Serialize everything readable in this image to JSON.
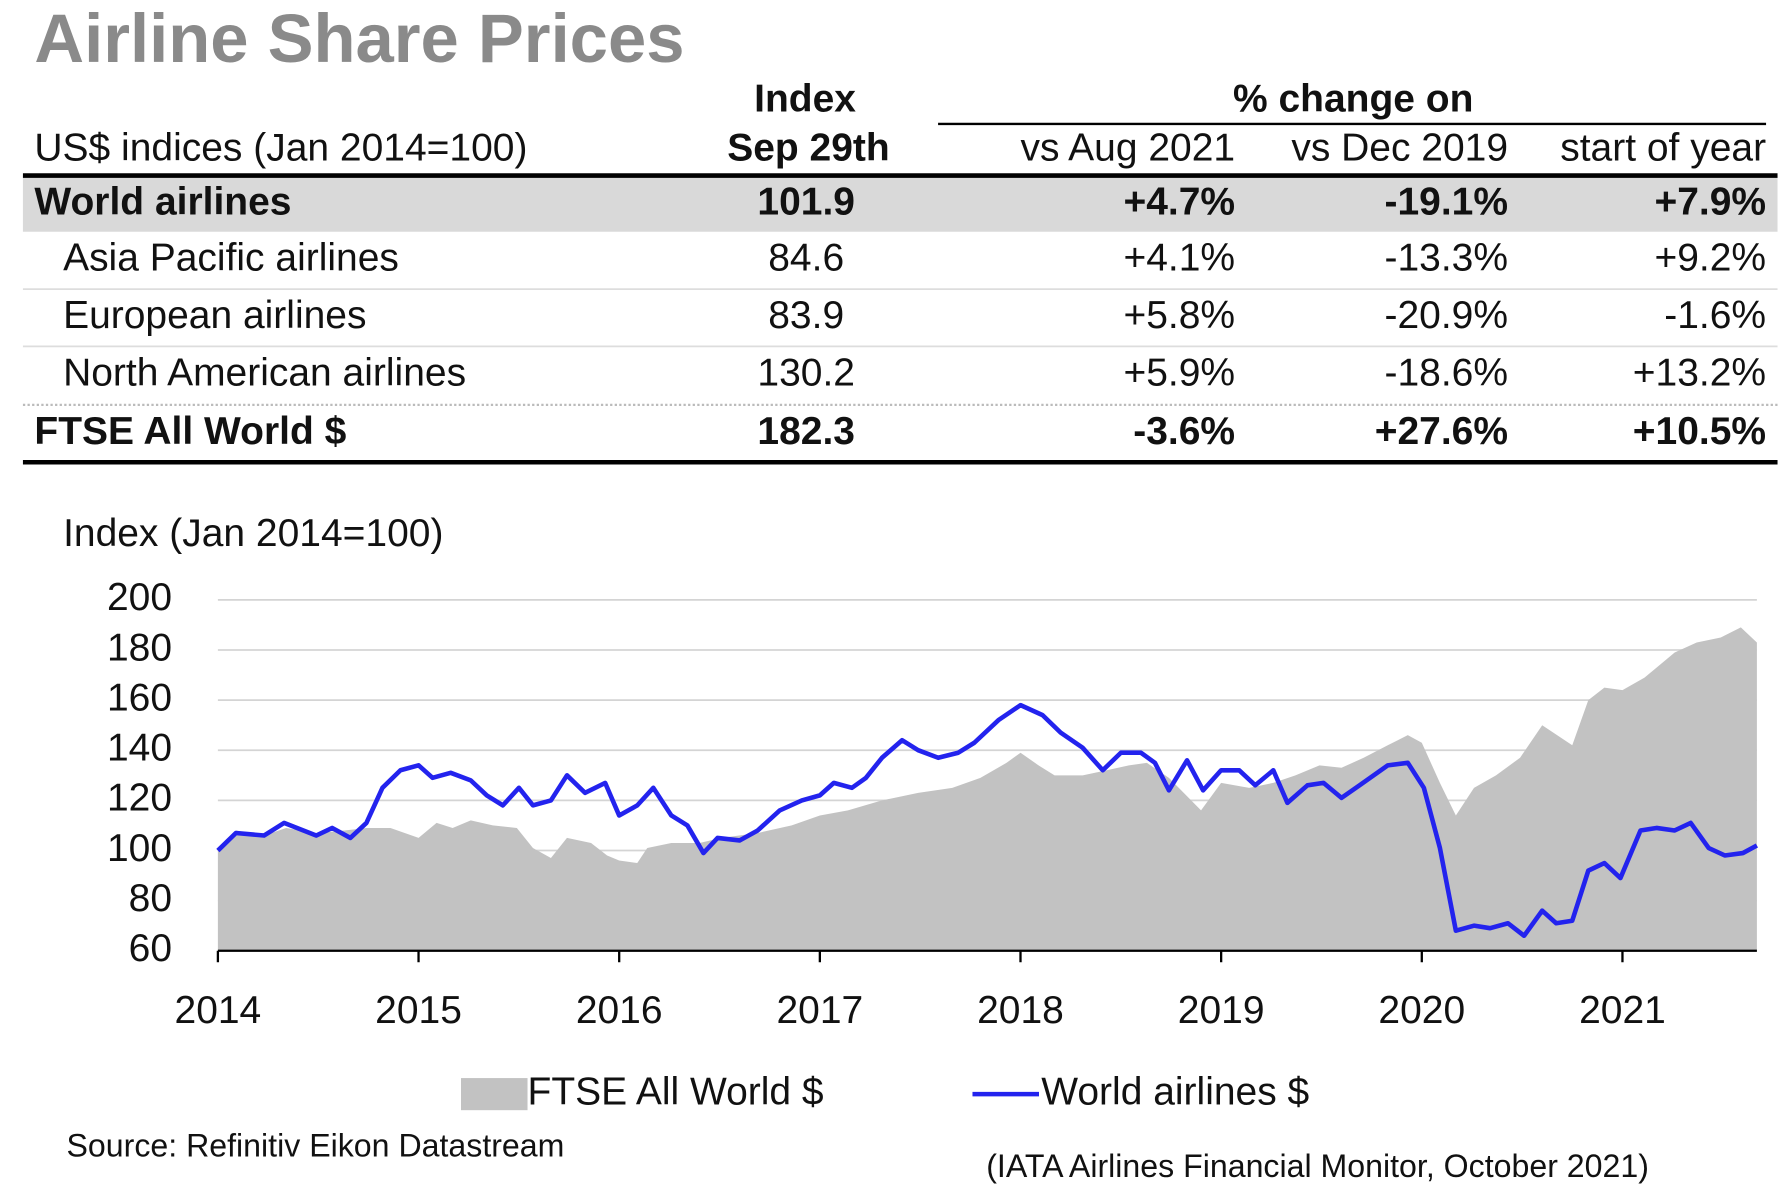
{
  "title": "Airline Share Prices",
  "table": {
    "header": {
      "subtitle": "US$ indices (Jan 2014=100)",
      "index": [
        "Index",
        "Sep 29th"
      ],
      "group": "% change on",
      "columns": [
        "vs Aug 2021",
        "vs Dec 2019",
        "start of year"
      ]
    },
    "rows": [
      [
        "World airlines",
        "101.9",
        "+4.7%",
        "-19.1%",
        "+7.9%"
      ],
      [
        "Asia Pacific airlines",
        "84.6",
        "+4.1%",
        "-13.3%",
        "+9.2%"
      ],
      [
        "European airlines",
        "83.9",
        "+5.8%",
        "-20.9%",
        "-1.6%"
      ],
      [
        "North American airlines",
        "130.2",
        "+5.9%",
        "-18.6%",
        "+13.2%"
      ],
      [
        "FTSE All World $",
        "182.3",
        "-3.6%",
        "+27.6%",
        "+10.5%"
      ]
    ]
  },
  "chart_data": {
    "type": "line",
    "ylabel": "Index (Jan 2014=100)",
    "xlim": [
      2014,
      2021.67
    ],
    "xticks": [
      2014,
      2015,
      2016,
      2017,
      2018,
      2019,
      2020,
      2021
    ],
    "ylim": [
      60,
      200
    ],
    "yticks": [
      60,
      80,
      100,
      120,
      140,
      160,
      180,
      200
    ],
    "grid": true,
    "series": [
      {
        "name": "FTSE All World $",
        "type": "area",
        "color": "#c2c2c2",
        "x": [
          2014.0,
          2014.09,
          2014.23,
          2014.34,
          2014.49,
          2014.63,
          2014.74,
          2014.86,
          2015.0,
          2015.09,
          2015.17,
          2015.26,
          2015.37,
          2015.49,
          2015.57,
          2015.66,
          2015.74,
          2015.86,
          2015.94,
          2016.0,
          2016.09,
          2016.14,
          2016.26,
          2016.4,
          2016.51,
          2016.69,
          2016.86,
          2017.0,
          2017.14,
          2017.31,
          2017.49,
          2017.66,
          2017.8,
          2017.93,
          2018.0,
          2018.09,
          2018.17,
          2018.31,
          2018.43,
          2018.54,
          2018.63,
          2018.74,
          2018.9,
          2019.0,
          2019.14,
          2019.26,
          2019.37,
          2019.49,
          2019.6,
          2019.71,
          2019.83,
          2019.93,
          2020.0,
          2020.09,
          2020.17,
          2020.26,
          2020.37,
          2020.49,
          2020.6,
          2020.75,
          2020.83,
          2020.91,
          2021.0,
          2021.11,
          2021.26,
          2021.37,
          2021.49,
          2021.59,
          2021.67
        ],
        "values": [
          100,
          108,
          106,
          109,
          107,
          108,
          109,
          109,
          105,
          111,
          109,
          112,
          110,
          109,
          101,
          97,
          105,
          103,
          98,
          96,
          95,
          101,
          103,
          103,
          105,
          107,
          110,
          114,
          116,
          120,
          123,
          125,
          129,
          135,
          139,
          134,
          130,
          130,
          132,
          134,
          135,
          129,
          116,
          127,
          125,
          127,
          130,
          134,
          133,
          137,
          142,
          146,
          143,
          127,
          114,
          125,
          130,
          137,
          150,
          142,
          160,
          165,
          164,
          169,
          179,
          183,
          185,
          189,
          183
        ]
      },
      {
        "name": "World airlines $",
        "type": "line",
        "color": "#2323ee",
        "x": [
          2014.0,
          2014.09,
          2014.23,
          2014.33,
          2014.49,
          2014.57,
          2014.66,
          2014.74,
          2014.82,
          2014.91,
          2015.0,
          2015.07,
          2015.16,
          2015.26,
          2015.34,
          2015.42,
          2015.5,
          2015.57,
          2015.66,
          2015.74,
          2015.83,
          2015.93,
          2016.0,
          2016.09,
          2016.17,
          2016.26,
          2016.34,
          2016.42,
          2016.49,
          2016.6,
          2016.69,
          2016.8,
          2016.91,
          2017.0,
          2017.07,
          2017.16,
          2017.23,
          2017.31,
          2017.41,
          2017.49,
          2017.59,
          2017.69,
          2017.77,
          2017.89,
          2018.0,
          2018.11,
          2018.2,
          2018.31,
          2018.41,
          2018.5,
          2018.6,
          2018.67,
          2018.74,
          2018.83,
          2018.91,
          2019.0,
          2019.09,
          2019.17,
          2019.26,
          2019.33,
          2019.43,
          2019.51,
          2019.6,
          2019.69,
          2019.83,
          2019.93,
          2020.01,
          2020.09,
          2020.17,
          2020.26,
          2020.34,
          2020.43,
          2020.51,
          2020.6,
          2020.67,
          2020.75,
          2020.83,
          2020.91,
          2020.99,
          2021.09,
          2021.17,
          2021.26,
          2021.34,
          2021.43,
          2021.51,
          2021.6,
          2021.67
        ],
        "values": [
          100,
          107,
          106,
          111,
          106,
          109,
          105,
          111,
          125,
          132,
          134,
          129,
          131,
          128,
          122,
          118,
          125,
          118,
          120,
          130,
          123,
          127,
          114,
          118,
          125,
          114,
          110,
          99,
          105,
          104,
          108,
          116,
          120,
          122,
          127,
          125,
          129,
          137,
          144,
          140,
          137,
          139,
          143,
          152,
          158,
          154,
          147,
          141,
          132,
          139,
          139,
          135,
          124,
          136,
          124,
          132,
          132,
          126,
          132,
          119,
          126,
          127,
          121,
          126,
          134,
          135,
          125,
          101,
          68,
          70,
          69,
          71,
          66,
          76,
          71,
          72,
          92,
          95,
          89,
          108,
          109,
          108,
          111,
          101,
          98,
          99,
          102
        ]
      }
    ]
  },
  "source": "Source: Refinitiv Eikon Datastream",
  "note": "(IATA Airlines Financial Monitor, October 2021)"
}
